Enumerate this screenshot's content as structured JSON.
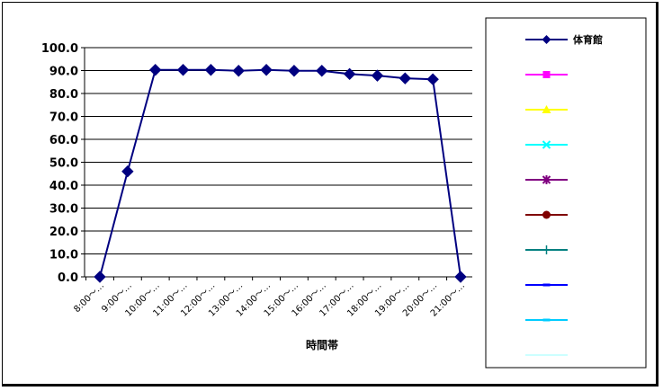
{
  "chart_data": {
    "type": "line",
    "xlabel": "時間帯",
    "categories": [
      "8:00～…",
      "9:00～…",
      "10:00～…",
      "11:00～…",
      "12:00～…",
      "13:00～…",
      "14:00～…",
      "15:00～…",
      "16:00～…",
      "17:00～…",
      "18:00～…",
      "19:00～…",
      "20:00～…",
      "21:00～…"
    ],
    "ylim": [
      0,
      100
    ],
    "yticks": [
      "0.0",
      "10.0",
      "20.0",
      "30.0",
      "40.0",
      "50.0",
      "60.0",
      "70.0",
      "80.0",
      "90.0",
      "100.0"
    ],
    "grid": true,
    "legend_position": "right",
    "series": [
      {
        "name": "体育館",
        "color": "#000080",
        "marker": "diamond",
        "values": [
          0,
          46,
          90.3,
          90.3,
          90.3,
          89.9,
          90.3,
          89.9,
          89.9,
          88.5,
          87.8,
          86.6,
          86.2,
          0
        ]
      }
    ],
    "legend_entries": [
      {
        "name": "体育館",
        "color": "#000080",
        "marker": "diamond"
      },
      {
        "name": "",
        "color": "#ff00ff",
        "marker": "square"
      },
      {
        "name": "",
        "color": "#ffff00",
        "marker": "triangle"
      },
      {
        "name": "",
        "color": "#00ffff",
        "marker": "x"
      },
      {
        "name": "",
        "color": "#800080",
        "marker": "star"
      },
      {
        "name": "",
        "color": "#800000",
        "marker": "circle"
      },
      {
        "name": "",
        "color": "#008080",
        "marker": "plus"
      },
      {
        "name": "",
        "color": "#0000ff",
        "marker": "dash"
      },
      {
        "name": "",
        "color": "#00ccff",
        "marker": "dash"
      },
      {
        "name": "",
        "color": "#ccffff",
        "marker": "none"
      }
    ]
  }
}
